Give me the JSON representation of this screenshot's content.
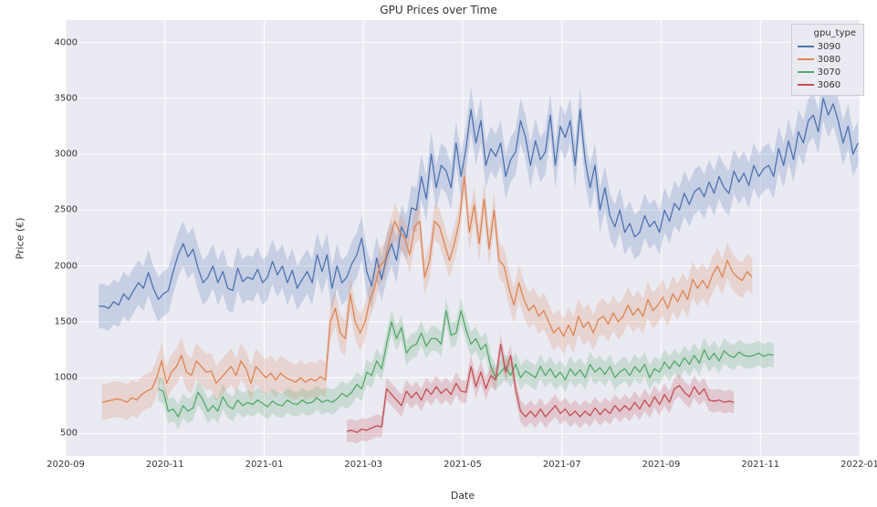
{
  "title": "GPU Prices over Time",
  "xlabel": "Date",
  "ylabel": "Price (€)",
  "background_color": "#ffffff",
  "plot_bg_color": "#eaeaf2",
  "grid_color": "#ffffff",
  "grid_width": 1,
  "title_fontsize": 12,
  "label_fontsize": 11,
  "tick_fontsize": 10,
  "line_width": 1.3,
  "band_opacity": 0.22,
  "x_axis": {
    "min": 0,
    "max": 480,
    "ticks": [
      {
        "pos": 0,
        "label": "2020-09"
      },
      {
        "pos": 60,
        "label": "2020-11"
      },
      {
        "pos": 120,
        "label": "2021-01"
      },
      {
        "pos": 180,
        "label": "2021-03"
      },
      {
        "pos": 240,
        "label": "2021-05"
      },
      {
        "pos": 300,
        "label": "2021-07"
      },
      {
        "pos": 360,
        "label": "2021-09"
      },
      {
        "pos": 420,
        "label": "2021-11"
      },
      {
        "pos": 480,
        "label": "2022-01"
      }
    ]
  },
  "y_axis": {
    "min": 300,
    "max": 4200,
    "ticks": [
      {
        "pos": 500,
        "label": "500"
      },
      {
        "pos": 1000,
        "label": "1000"
      },
      {
        "pos": 1500,
        "label": "1500"
      },
      {
        "pos": 2000,
        "label": "2000"
      },
      {
        "pos": 2500,
        "label": "2500"
      },
      {
        "pos": 3000,
        "label": "3000"
      },
      {
        "pos": 3500,
        "label": "3500"
      },
      {
        "pos": 4000,
        "label": "4000"
      }
    ]
  },
  "legend": {
    "title": "gpu_type",
    "position": "upper-right",
    "items": [
      {
        "label": "3090",
        "color": "#4c72b0"
      },
      {
        "label": "3080",
        "color": "#dd8452"
      },
      {
        "label": "3070",
        "color": "#55a868"
      },
      {
        "label": "3060",
        "color": "#c44e52"
      }
    ]
  },
  "series": [
    {
      "name": "3090",
      "color": "#4c72b0",
      "x_start": 20,
      "x_step": 3,
      "y": [
        1640,
        1640,
        1620,
        1680,
        1650,
        1750,
        1700,
        1780,
        1850,
        1800,
        1940,
        1800,
        1700,
        1750,
        1780,
        1950,
        2100,
        2200,
        2080,
        2150,
        1980,
        1850,
        1900,
        2000,
        1850,
        1950,
        1800,
        1780,
        1980,
        1860,
        1900,
        1880,
        1970,
        1850,
        1900,
        2040,
        1920,
        2000,
        1850,
        1960,
        1800,
        1880,
        1950,
        1850,
        2100,
        1950,
        2100,
        1800,
        2000,
        1850,
        1900,
        2020,
        2100,
        2250,
        1950,
        1820,
        2070,
        1880,
        2080,
        2200,
        2050,
        2350,
        2250,
        2520,
        2500,
        2800,
        2600,
        3000,
        2700,
        2900,
        2850,
        2700,
        3100,
        2800,
        3050,
        3400,
        3100,
        3300,
        2900,
        3050,
        2980,
        3100,
        2800,
        2950,
        3020,
        3300,
        3150,
        2900,
        3120,
        2950,
        3020,
        3350,
        2900,
        3250,
        3150,
        3300,
        2900,
        3400,
        2950,
        2700,
        2900,
        2500,
        2700,
        2450,
        2350,
        2500,
        2300,
        2380,
        2260,
        2300,
        2450,
        2350,
        2400,
        2300,
        2500,
        2400,
        2560,
        2500,
        2650,
        2550,
        2660,
        2700,
        2620,
        2750,
        2650,
        2800,
        2700,
        2650,
        2850,
        2750,
        2830,
        2720,
        2900,
        2800,
        2870,
        2900,
        2800,
        3050,
        2900,
        3120,
        2950,
        3200,
        3100,
        3300,
        3350,
        3200,
        3500,
        3350,
        3450,
        3300,
        3100,
        3250,
        3000,
        3100
      ],
      "band": 200
    },
    {
      "name": "3080",
      "color": "#dd8452",
      "x_start": 22,
      "x_step": 3,
      "y": [
        780,
        790,
        800,
        810,
        800,
        780,
        820,
        800,
        850,
        880,
        900,
        1000,
        1150,
        950,
        1050,
        1100,
        1200,
        1050,
        1020,
        1150,
        1100,
        1050,
        1060,
        950,
        1000,
        1050,
        1100,
        1020,
        1150,
        1080,
        950,
        1100,
        1050,
        1000,
        1040,
        980,
        1040,
        1000,
        980,
        960,
        1000,
        960,
        990,
        970,
        1010,
        980,
        1500,
        1620,
        1400,
        1350,
        1750,
        1500,
        1400,
        1500,
        1700,
        1820,
        2000,
        2050,
        2250,
        2400,
        2300,
        2250,
        2100,
        2350,
        2400,
        1900,
        2050,
        2400,
        2350,
        2200,
        2050,
        2200,
        2400,
        2800,
        2300,
        2550,
        2200,
        2600,
        2150,
        2500,
        2050,
        2000,
        1800,
        1650,
        1850,
        1700,
        1600,
        1650,
        1550,
        1600,
        1500,
        1400,
        1450,
        1370,
        1470,
        1380,
        1550,
        1450,
        1500,
        1400,
        1520,
        1550,
        1480,
        1580,
        1500,
        1550,
        1650,
        1560,
        1620,
        1550,
        1700,
        1600,
        1650,
        1720,
        1620,
        1750,
        1680,
        1780,
        1700,
        1880,
        1800,
        1870,
        1800,
        1920,
        2000,
        1900,
        2050,
        1950,
        1900,
        1870,
        1950,
        1900
      ],
      "band": 160
    },
    {
      "name": "3070",
      "color": "#55a868",
      "x_start": 56,
      "x_step": 3,
      "y": [
        900,
        880,
        700,
        720,
        650,
        750,
        700,
        730,
        870,
        800,
        700,
        750,
        700,
        830,
        750,
        720,
        800,
        750,
        780,
        760,
        800,
        770,
        740,
        790,
        760,
        750,
        800,
        770,
        760,
        800,
        770,
        780,
        820,
        780,
        800,
        780,
        810,
        860,
        830,
        870,
        940,
        900,
        1050,
        1020,
        1150,
        1080,
        1300,
        1500,
        1350,
        1450,
        1220,
        1280,
        1300,
        1400,
        1280,
        1350,
        1350,
        1300,
        1600,
        1380,
        1400,
        1600,
        1430,
        1300,
        1350,
        1250,
        1300,
        1100,
        1000,
        1050,
        1100,
        1020,
        1120,
        1000,
        1060,
        1030,
        1000,
        1100,
        1020,
        1080,
        1000,
        1050,
        980,
        1080,
        1020,
        1070,
        1000,
        1120,
        1050,
        1090,
        1030,
        1100,
        1000,
        1050,
        1080,
        1020,
        1100,
        1050,
        1120,
        1000,
        1080,
        1050,
        1140,
        1080,
        1150,
        1100,
        1180,
        1120,
        1200,
        1130,
        1250,
        1160,
        1220,
        1150,
        1240,
        1200,
        1180,
        1230,
        1200,
        1190,
        1200,
        1220,
        1190,
        1210,
        1200
      ],
      "band": 110
    },
    {
      "name": "3060",
      "color": "#c44e52",
      "x_start": 170,
      "x_step": 3,
      "y": [
        520,
        530,
        510,
        540,
        530,
        550,
        570,
        560,
        900,
        850,
        800,
        750,
        880,
        820,
        870,
        800,
        900,
        850,
        920,
        860,
        900,
        850,
        950,
        880,
        870,
        1100,
        920,
        1050,
        900,
        1020,
        980,
        1300,
        1050,
        1200,
        900,
        700,
        650,
        700,
        650,
        720,
        650,
        700,
        750,
        680,
        720,
        660,
        700,
        650,
        700,
        660,
        730,
        670,
        720,
        680,
        750,
        700,
        750,
        710,
        780,
        720,
        800,
        740,
        830,
        760,
        850,
        780,
        900,
        930,
        870,
        830,
        920,
        850,
        900,
        800,
        790,
        800,
        780,
        790,
        780
      ],
      "band": 100
    }
  ]
}
